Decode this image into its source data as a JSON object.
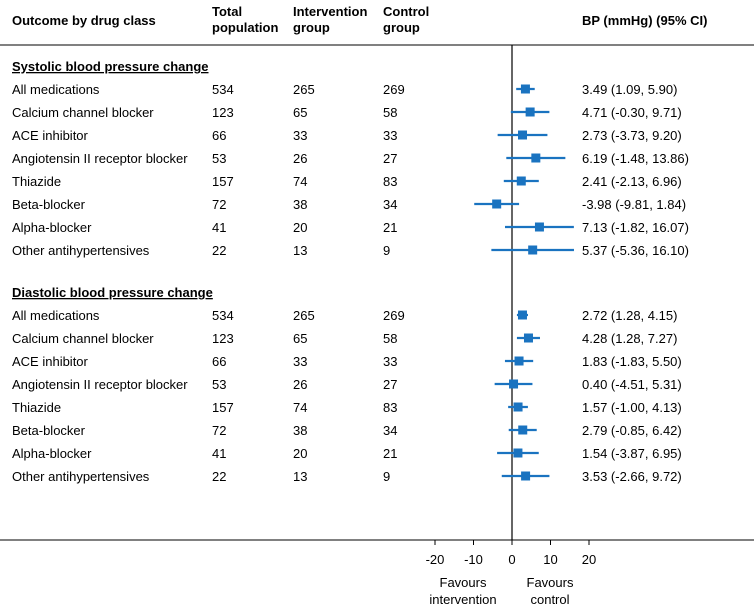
{
  "headers": {
    "outcome": "Outcome by drug class",
    "total_line1": "Total",
    "total_line2": "population",
    "intervention_line1": "Intervention",
    "intervention_line2": "group",
    "control_line1": "Control",
    "control_line2": "group",
    "ci": "BP (mmHg) (95% CI)"
  },
  "footer": {
    "left_line1": "Favours",
    "left_line2": "intervention",
    "right_line1": "Favours",
    "right_line2": "control"
  },
  "colors": {
    "marker": "#1a73c0",
    "axis": "#000000"
  },
  "chart_data": {
    "type": "forest",
    "xlim": [
      -20,
      20
    ],
    "xticks": [
      -20,
      -10,
      0,
      10,
      20
    ],
    "xtick_labels": [
      "-20",
      "-10",
      "0",
      "10",
      "20"
    ],
    "sections": [
      {
        "title": "Systolic blood pressure change",
        "rows": [
          {
            "label": "All medications",
            "total": "534",
            "intervention": "265",
            "control": "269",
            "est": 3.49,
            "lo": 1.09,
            "hi": 5.9,
            "ci_text": "3.49 (1.09, 5.90)"
          },
          {
            "label": "Calcium channel blocker",
            "total": "123",
            "intervention": "65",
            "control": "58",
            "est": 4.71,
            "lo": -0.3,
            "hi": 9.71,
            "ci_text": "4.71 (-0.30, 9.71)"
          },
          {
            "label": "ACE inhibitor",
            "total": "66",
            "intervention": "33",
            "control": "33",
            "est": 2.73,
            "lo": -3.73,
            "hi": 9.2,
            "ci_text": "2.73 (-3.73, 9.20)"
          },
          {
            "label": "Angiotensin II receptor blocker",
            "total": "53",
            "intervention": "26",
            "control": "27",
            "est": 6.19,
            "lo": -1.48,
            "hi": 13.86,
            "ci_text": "6.19 (-1.48, 13.86)"
          },
          {
            "label": "Thiazide",
            "total": "157",
            "intervention": "74",
            "control": "83",
            "est": 2.41,
            "lo": -2.13,
            "hi": 6.96,
            "ci_text": "2.41 (-2.13, 6.96)"
          },
          {
            "label": "Beta-blocker",
            "total": "72",
            "intervention": "38",
            "control": "34",
            "est": -3.98,
            "lo": -9.81,
            "hi": 1.84,
            "ci_text": "-3.98 (-9.81, 1.84)"
          },
          {
            "label": "Alpha-blocker",
            "total": "41",
            "intervention": "20",
            "control": "21",
            "est": 7.13,
            "lo": -1.82,
            "hi": 16.07,
            "ci_text": "7.13 (-1.82, 16.07)"
          },
          {
            "label": "Other antihypertensives",
            "total": "22",
            "intervention": "13",
            "control": "9",
            "est": 5.37,
            "lo": -5.36,
            "hi": 16.1,
            "ci_text": "5.37 (-5.36, 16.10)"
          }
        ]
      },
      {
        "title": "Diastolic blood pressure change",
        "rows": [
          {
            "label": "All medications",
            "total": "534",
            "intervention": "265",
            "control": "269",
            "est": 2.72,
            "lo": 1.28,
            "hi": 4.15,
            "ci_text": "2.72 (1.28, 4.15)"
          },
          {
            "label": "Calcium channel blocker",
            "total": "123",
            "intervention": "65",
            "control": "58",
            "est": 4.28,
            "lo": 1.28,
            "hi": 7.27,
            "ci_text": "4.28 (1.28, 7.27)"
          },
          {
            "label": "ACE inhibitor",
            "total": "66",
            "intervention": "33",
            "control": "33",
            "est": 1.83,
            "lo": -1.83,
            "hi": 5.5,
            "ci_text": "1.83 (-1.83, 5.50)"
          },
          {
            "label": "Angiotensin II receptor blocker",
            "total": "53",
            "intervention": "26",
            "control": "27",
            "est": 0.4,
            "lo": -4.51,
            "hi": 5.31,
            "ci_text": "0.40 (-4.51, 5.31)"
          },
          {
            "label": "Thiazide",
            "total": "157",
            "intervention": "74",
            "control": "83",
            "est": 1.57,
            "lo": -1.0,
            "hi": 4.13,
            "ci_text": "1.57 (-1.00, 4.13)"
          },
          {
            "label": "Beta-blocker",
            "total": "72",
            "intervention": "38",
            "control": "34",
            "est": 2.79,
            "lo": -0.85,
            "hi": 6.42,
            "ci_text": "2.79 (-0.85, 6.42)"
          },
          {
            "label": "Alpha-blocker",
            "total": "41",
            "intervention": "20",
            "control": "21",
            "est": 1.54,
            "lo": -3.87,
            "hi": 6.95,
            "ci_text": "1.54 (-3.87, 6.95)"
          },
          {
            "label": "Other antihypertensives",
            "total": "22",
            "intervention": "13",
            "control": "9",
            "est": 3.53,
            "lo": -2.66,
            "hi": 9.72,
            "ci_text": "3.53 (-2.66, 9.72)"
          }
        ]
      }
    ]
  }
}
